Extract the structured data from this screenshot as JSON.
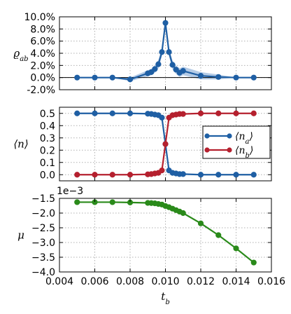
{
  "chart_data": [
    {
      "type": "line",
      "ylabel": "ϱ_ab",
      "xlim": [
        0.004,
        0.016
      ],
      "ylim": [
        -0.02,
        0.1
      ],
      "yticks": [
        "-2.0%",
        "0.0%",
        "2.0%",
        "4.0%",
        "6.0%",
        "8.0%",
        "10.0%"
      ],
      "ytick_values": [
        -0.02,
        0.0,
        0.02,
        0.04,
        0.06,
        0.08,
        0.1
      ],
      "grid": true,
      "zero_line": true,
      "color": "#1f5fa4",
      "band_color": "#9bb9dd",
      "series": [
        {
          "x": [
            0.005,
            0.006,
            0.007,
            0.008,
            0.009,
            0.0092,
            0.0094,
            0.0096,
            0.0098,
            0.01,
            0.0102,
            0.0104,
            0.0106,
            0.0108,
            0.011,
            0.012,
            0.013,
            0.014,
            0.015
          ],
          "y": [
            0.0,
            0.0,
            0.0,
            -0.003,
            0.007,
            0.009,
            0.014,
            0.022,
            0.042,
            0.09,
            0.042,
            0.021,
            0.013,
            0.008,
            0.011,
            0.003,
            0.001,
            0.0,
            0.0
          ],
          "band_low": [
            0.0,
            0.0,
            0.0,
            -0.006,
            0.002,
            0.004,
            0.008,
            0.015,
            0.035,
            0.085,
            0.035,
            0.014,
            0.006,
            0.001,
            0.004,
            -0.003,
            -0.003,
            0.0,
            0.0
          ],
          "band_high": [
            0.0,
            0.0,
            0.0,
            0.0,
            0.012,
            0.014,
            0.02,
            0.029,
            0.049,
            0.095,
            0.049,
            0.028,
            0.02,
            0.015,
            0.018,
            0.009,
            0.005,
            0.0,
            0.0
          ]
        }
      ]
    },
    {
      "type": "line",
      "ylabel": "⟨n⟩",
      "xlim": [
        0.004,
        0.016
      ],
      "ylim": [
        -0.05,
        0.55
      ],
      "yticks": [
        "0.0",
        "0.1",
        "0.2",
        "0.3",
        "0.4",
        "0.5"
      ],
      "ytick_values": [
        0.0,
        0.1,
        0.2,
        0.3,
        0.4,
        0.5
      ],
      "grid": true,
      "legend": "right",
      "series": [
        {
          "name": "⟨n_a⟩",
          "color": "#1f5fa4",
          "x": [
            0.005,
            0.006,
            0.007,
            0.008,
            0.009,
            0.0092,
            0.0094,
            0.0096,
            0.0098,
            0.01,
            0.0102,
            0.0104,
            0.0106,
            0.0108,
            0.011,
            0.012,
            0.013,
            0.014,
            0.015
          ],
          "y": [
            0.5,
            0.5,
            0.5,
            0.5,
            0.497,
            0.495,
            0.49,
            0.485,
            0.465,
            0.25,
            0.035,
            0.015,
            0.01,
            0.005,
            0.005,
            0.0,
            0.0,
            0.0,
            0.0
          ]
        },
        {
          "name": "⟨n_b⟩",
          "color": "#b5202e",
          "x": [
            0.005,
            0.006,
            0.007,
            0.008,
            0.009,
            0.0092,
            0.0094,
            0.0096,
            0.0098,
            0.01,
            0.0102,
            0.0104,
            0.0106,
            0.0108,
            0.011,
            0.012,
            0.013,
            0.014,
            0.015
          ],
          "y": [
            0.0,
            0.0,
            0.0,
            0.0,
            0.003,
            0.005,
            0.01,
            0.015,
            0.035,
            0.25,
            0.465,
            0.485,
            0.49,
            0.495,
            0.495,
            0.5,
            0.5,
            0.5,
            0.5
          ]
        }
      ]
    },
    {
      "type": "line",
      "ylabel": "μ",
      "xlabel": "t_b",
      "offset_label": "1e−3",
      "xlim": [
        0.004,
        0.016
      ],
      "ylim": [
        -4.0,
        -1.5
      ],
      "xticks": [
        "0.004",
        "0.006",
        "0.008",
        "0.010",
        "0.012",
        "0.014",
        "0.016"
      ],
      "xtick_values": [
        0.004,
        0.006,
        0.008,
        0.01,
        0.012,
        0.014,
        0.016
      ],
      "yticks": [
        "−4.0",
        "−3.5",
        "−3.0",
        "−2.5",
        "−2.0",
        "−1.5"
      ],
      "ytick_values": [
        -4.0,
        -3.5,
        -3.0,
        -2.5,
        -2.0,
        -1.5
      ],
      "grid": true,
      "color": "#2a8a1a",
      "series": [
        {
          "x": [
            0.005,
            0.006,
            0.007,
            0.008,
            0.009,
            0.0092,
            0.0094,
            0.0096,
            0.0098,
            0.01,
            0.0102,
            0.0104,
            0.0106,
            0.0108,
            0.011,
            0.012,
            0.013,
            0.014,
            0.015
          ],
          "y": [
            -1.63,
            -1.63,
            -1.63,
            -1.64,
            -1.655,
            -1.66,
            -1.67,
            -1.69,
            -1.71,
            -1.76,
            -1.8,
            -1.85,
            -1.9,
            -1.95,
            -2.0,
            -2.35,
            -2.75,
            -3.2,
            -3.68
          ]
        }
      ]
    }
  ]
}
